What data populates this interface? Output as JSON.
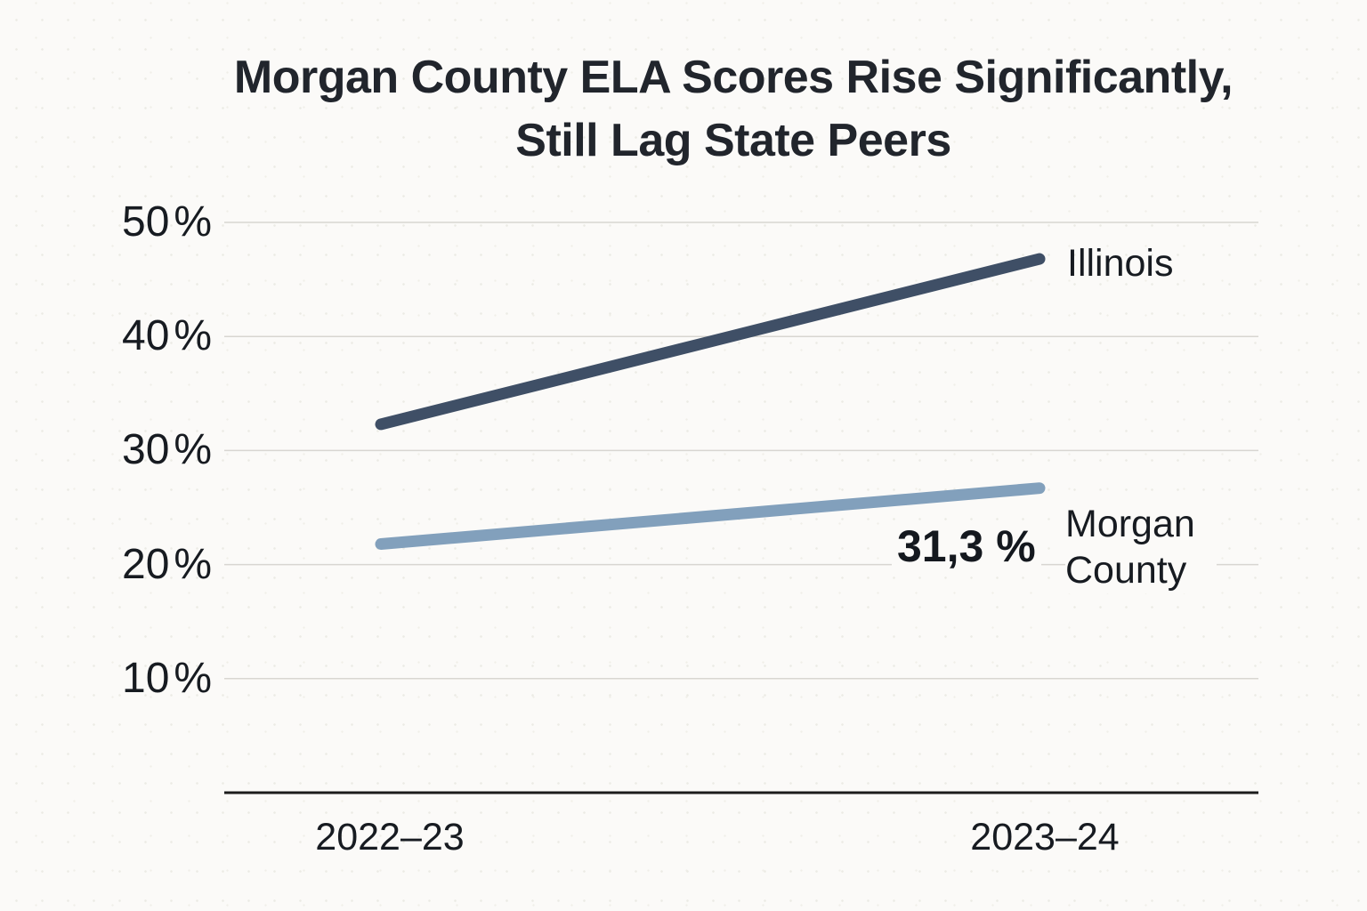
{
  "title": {
    "line1": "Morgan County ELA Scores Rise Significantly,",
    "line2": "Still Lag State Peers"
  },
  "colors": {
    "background": "#fbfaf8",
    "grid": "#d8d6d1",
    "axis": "#1c1c1c",
    "text": "#171b21",
    "illinois_line": "#3f4f66",
    "morgan_line": "#82a0bc"
  },
  "chart_data": {
    "type": "line",
    "title": "Morgan County ELA Scores Rise Significantly, Still Lag State Peers",
    "xlabel": "",
    "ylabel": "",
    "categories": [
      "2022–23",
      "2023–24"
    ],
    "series": [
      {
        "name": "Illinois",
        "values": [
          32.3,
          46.8
        ],
        "color": "#3f4f66"
      },
      {
        "name": "Morgan County",
        "values": [
          21.8,
          26.7
        ],
        "color": "#82a0bc"
      }
    ],
    "y_axis": {
      "ticks": [
        "50",
        "40",
        "30",
        "20",
        "10"
      ],
      "suffix": "%",
      "range_bottom": 0,
      "range_top": 50,
      "grid": true
    },
    "annotation": {
      "text": "31,3 %"
    },
    "legend_position": "line-end-labels"
  }
}
